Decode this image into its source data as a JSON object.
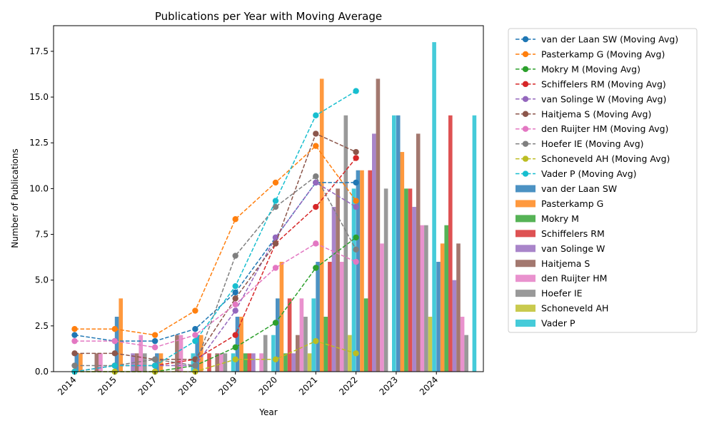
{
  "chart_data": {
    "type": "bar+line",
    "title": "Publications per Year with Moving Average",
    "xlabel": "Year",
    "ylabel": "Number of Publications",
    "ylim": [
      0,
      18.9
    ],
    "yticks": [
      0.0,
      2.5,
      5.0,
      7.5,
      10.0,
      12.5,
      15.0,
      17.5
    ],
    "ytick_labels": [
      "0.0",
      "2.5",
      "5.0",
      "7.5",
      "10.0",
      "12.5",
      "15.0",
      "17.5"
    ],
    "categories": [
      "2014",
      "2015",
      "2017",
      "2018",
      "2019",
      "2020",
      "2021",
      "2022",
      "2023",
      "2024"
    ],
    "legend_position": "outside-right",
    "line_suffix": " (Moving Avg)",
    "series": [
      {
        "name": "van der Laan SW",
        "color": "#1f77b4",
        "values": [
          1,
          3,
          1,
          2,
          3,
          4,
          6,
          11,
          14,
          6
        ],
        "moving_avg": [
          2.0,
          1.67,
          1.67,
          2.33,
          4.33,
          7.33,
          10.33,
          10.33,
          null,
          null
        ]
      },
      {
        "name": "Pasterkamp G",
        "color": "#ff7f0e",
        "values": [
          1,
          4,
          1,
          2,
          3,
          6,
          16,
          11,
          12,
          7
        ],
        "moving_avg": [
          2.33,
          2.33,
          2.0,
          3.33,
          8.33,
          10.33,
          12.33,
          9.33,
          null,
          null
        ]
      },
      {
        "name": "Mokry M",
        "color": "#2ca02c",
        "values": [
          0,
          0,
          0,
          0,
          1,
          1,
          3,
          4,
          10,
          8
        ],
        "moving_avg": [
          0.0,
          0.0,
          0.0,
          0.33,
          1.33,
          2.67,
          5.67,
          7.33,
          null,
          null
        ]
      },
      {
        "name": "Schiffelers RM",
        "color": "#d62728",
        "values": [
          0,
          0,
          0,
          1,
          1,
          4,
          6,
          11,
          10,
          14
        ],
        "moving_avg": [
          0.0,
          0.33,
          0.33,
          0.67,
          2.0,
          7.0,
          9.0,
          11.67,
          null,
          null
        ]
      },
      {
        "name": "van Solinge W",
        "color": "#9467bd",
        "values": [
          0,
          1,
          0,
          0,
          1,
          1,
          9,
          13,
          9,
          5
        ],
        "moving_avg": [
          0.0,
          0.33,
          0.33,
          0.33,
          3.33,
          7.33,
          10.33,
          9.0,
          null,
          null
        ]
      },
      {
        "name": "Haitjema S",
        "color": "#8c564b",
        "values": [
          1,
          1,
          2,
          1,
          0,
          2,
          10,
          16,
          13,
          7
        ],
        "moving_avg": [
          1.0,
          1.0,
          0.67,
          0.67,
          4.0,
          7.0,
          13.0,
          12.0,
          null,
          null
        ]
      },
      {
        "name": "den Ruijter HM",
        "color": "#e377c2",
        "values": [
          1,
          2,
          2,
          1,
          1,
          4,
          6,
          7,
          8,
          3
        ],
        "moving_avg": [
          1.67,
          1.67,
          1.33,
          2.0,
          3.67,
          5.67,
          7.0,
          6.0,
          null,
          null
        ]
      },
      {
        "name": "Hoefer IE",
        "color": "#7f7f7f",
        "values": [
          0,
          1,
          0,
          1,
          2,
          3,
          14,
          10,
          8,
          2
        ],
        "moving_avg": [
          0.33,
          0.33,
          0.67,
          0.33,
          6.33,
          9.0,
          10.67,
          6.67,
          null,
          null
        ]
      },
      {
        "name": "Schoneveld AH",
        "color": "#bcbd22",
        "values": [
          0,
          0,
          0,
          0,
          0,
          1,
          2,
          0,
          3,
          0
        ],
        "moving_avg": [
          0.0,
          0.0,
          0.0,
          0.0,
          0.67,
          0.67,
          1.67,
          1.0,
          null,
          null
        ]
      },
      {
        "name": "Vader P",
        "color": "#17becf",
        "values": [
          0,
          0,
          1,
          1,
          2,
          4,
          10,
          14,
          18,
          14
        ],
        "moving_avg": [
          0.0,
          0.33,
          0.33,
          1.67,
          4.67,
          9.33,
          14.0,
          15.33,
          null,
          null
        ]
      }
    ]
  }
}
